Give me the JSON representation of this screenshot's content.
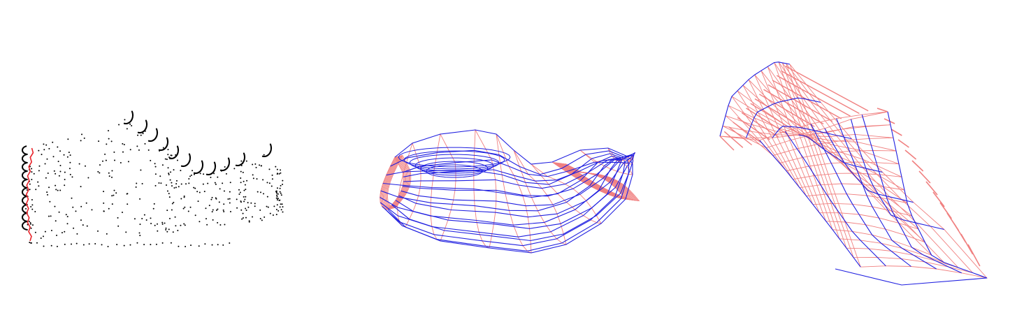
{
  "panels": [
    {
      "id": "point-cloud",
      "kind": "point-cloud",
      "point_color": "#000000",
      "profile_curve_color": "#e8232a"
    },
    {
      "id": "shoe-wireframe-side",
      "kind": "wireframe",
      "cross_section_color": "#f08080",
      "longitudinal_color": "#1f1fe0"
    },
    {
      "id": "shoe-wireframe-angled",
      "kind": "wireframe",
      "cross_section_color": "#f08080",
      "longitudinal_color": "#1f1fe0"
    }
  ]
}
